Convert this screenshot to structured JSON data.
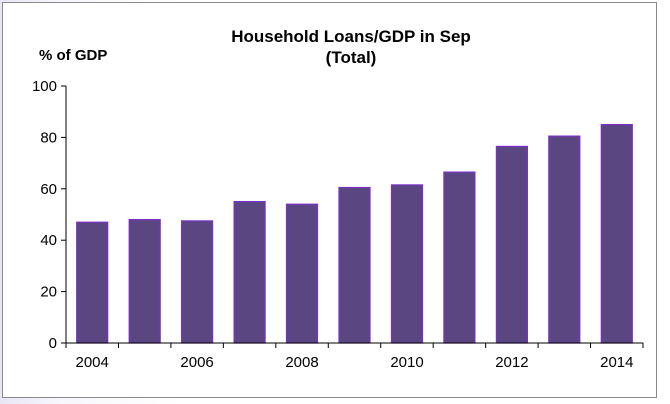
{
  "chart_data": {
    "type": "bar",
    "title": "Household Loans/GDP in Sep",
    "subtitle": "(Total)",
    "xlabel": "",
    "ylabel": "% of GDP",
    "categories": [
      "2004",
      "2005",
      "2006",
      "2007",
      "2008",
      "2009",
      "2010",
      "2011",
      "2012",
      "2013",
      "2014"
    ],
    "x_tick_labels": [
      "2004",
      "2006",
      "2008",
      "2010",
      "2012",
      "2014"
    ],
    "y_tick_labels": [
      "0",
      "20",
      "40",
      "60",
      "80",
      "100"
    ],
    "series": [
      {
        "values": [
          47,
          48,
          47.5,
          55,
          54,
          60.5,
          61.5,
          66.5,
          76.5,
          80.5,
          85
        ]
      }
    ],
    "ylim": [
      0,
      100
    ],
    "grid": false,
    "legend": "none",
    "colors": {
      "bar": "#5a4680",
      "bar_edge": "#7b30c8"
    }
  }
}
